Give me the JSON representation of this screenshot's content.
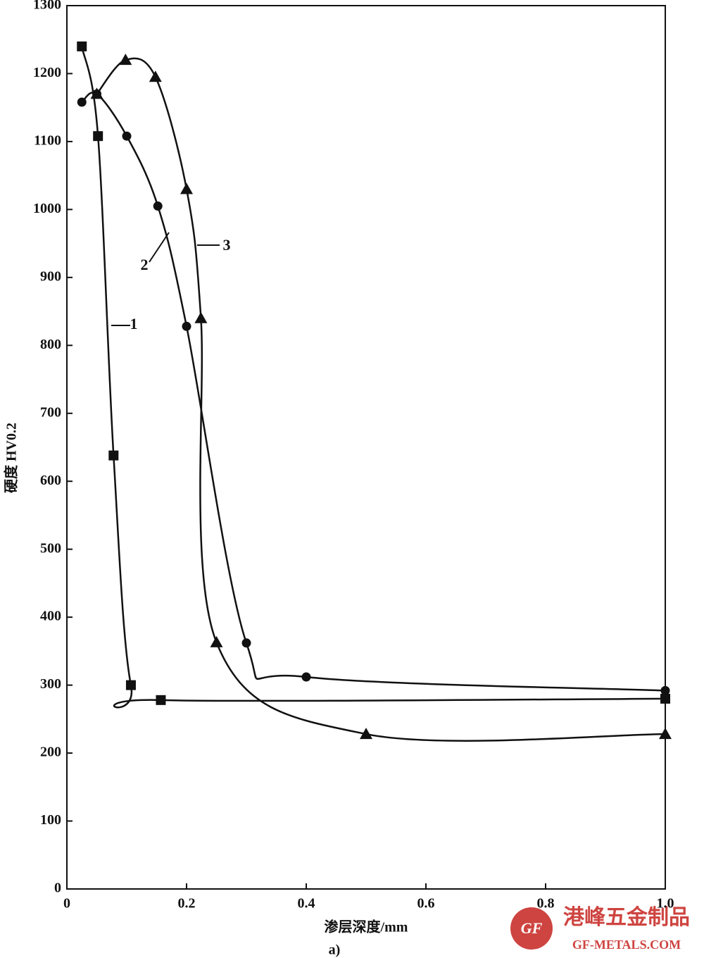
{
  "chart_data": {
    "type": "line",
    "xlabel": "渗层深度/mm",
    "ylabel": "硬度  HV0.2",
    "caption": "a)",
    "xlim": [
      0,
      1
    ],
    "ylim": [
      0,
      1300
    ],
    "xticks": [
      0,
      0.2,
      0.4,
      0.6,
      0.8,
      {
        "value": 1,
        "label": "1.0"
      }
    ],
    "yticks": [
      0,
      100,
      200,
      300,
      400,
      500,
      600,
      700,
      800,
      900,
      1000,
      1100,
      1200,
      1300
    ],
    "series": [
      {
        "name": "1",
        "color": "#111111",
        "marker": "square",
        "x": [
          0.025,
          0.052,
          0.078,
          0.107,
          0.157,
          1.0
        ],
        "values": [
          1240,
          1108,
          638,
          300,
          278,
          280
        ]
      },
      {
        "name": "2",
        "color": "#111111",
        "marker": "circle",
        "x": [
          0.025,
          0.05,
          0.1,
          0.152,
          0.2,
          0.3,
          0.4,
          1.0
        ],
        "values": [
          1158,
          1170,
          1108,
          1005,
          828,
          362,
          312,
          292
        ]
      },
      {
        "name": "3",
        "color": "#111111",
        "marker": "triangle",
        "x": [
          0.05,
          0.098,
          0.148,
          0.2,
          0.224,
          0.25,
          0.5,
          1.0
        ],
        "values": [
          1170,
          1220,
          1195,
          1030,
          840,
          363,
          228,
          228
        ]
      }
    ],
    "watermark": {
      "brand": "港峰五金制品",
      "site": "GF-METALS.COM",
      "logo": "GF"
    }
  }
}
